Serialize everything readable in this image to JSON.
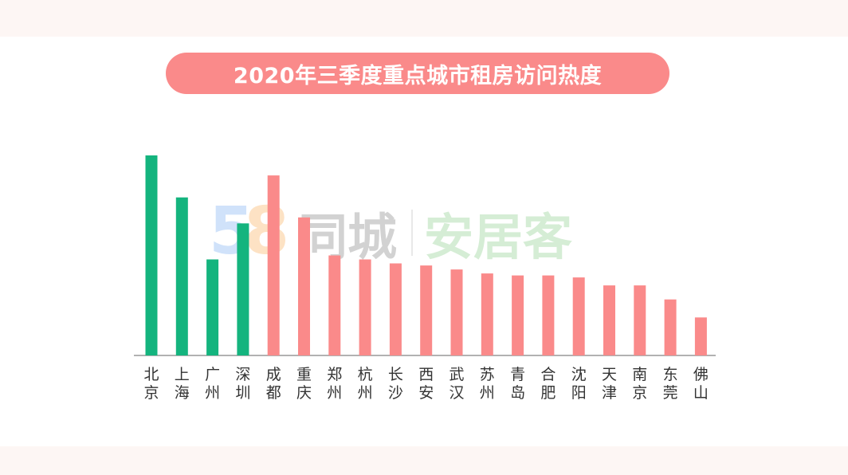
{
  "title": "2020年三季度重点城市租房访问热度",
  "watermark": {
    "logo_digit_1": "5",
    "logo_digit_2": "8",
    "brand_1": "同城",
    "brand_2": "安居客"
  },
  "colors": {
    "highlight": "#14b47e",
    "default": "#fa8a8a",
    "title_bg": "#fa8a8a",
    "axis": "#999999"
  },
  "chart_data": {
    "type": "bar",
    "title": "2020年三季度重点城市租房访问热度",
    "xlabel": "",
    "ylabel": "",
    "ylim": [
      0,
      100
    ],
    "grid": false,
    "yaxis_shown": false,
    "categories": [
      "北京",
      "上海",
      "广州",
      "深圳",
      "成都",
      "重庆",
      "郑州",
      "杭州",
      "长沙",
      "西安",
      "武汉",
      "苏州",
      "青岛",
      "合肥",
      "沈阳",
      "天津",
      "南京",
      "东莞",
      "佛山"
    ],
    "values": [
      100,
      79,
      48,
      66,
      90,
      69,
      50,
      48,
      46,
      45,
      43,
      41,
      40,
      40,
      39,
      35,
      35,
      28,
      19
    ],
    "highlighted": [
      true,
      true,
      true,
      true,
      false,
      false,
      false,
      false,
      false,
      false,
      false,
      false,
      false,
      false,
      false,
      false,
      false,
      false,
      false
    ]
  }
}
